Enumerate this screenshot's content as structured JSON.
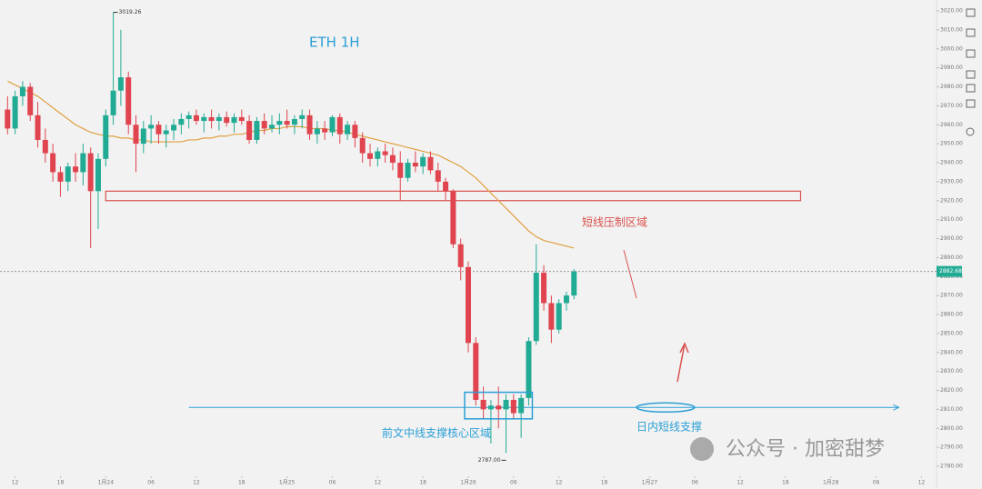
{
  "chart_data": {
    "type": "candlestick",
    "title": "ETH  1H",
    "x": [
      -13,
      -12,
      -11,
      -10,
      -9,
      -8,
      -7,
      -6,
      -5,
      -4,
      -3,
      -2,
      -1,
      0,
      1,
      2,
      3,
      4,
      5,
      6,
      7,
      8,
      9,
      10,
      11,
      12,
      13,
      14,
      15,
      16,
      17,
      18,
      19,
      20,
      21,
      22,
      23,
      24,
      25,
      26,
      27,
      28,
      29,
      30,
      31,
      32,
      33,
      34,
      35,
      36,
      37,
      38,
      39,
      40,
      41,
      42,
      43,
      44,
      45,
      46,
      47,
      48,
      49,
      50,
      51,
      52,
      53,
      54,
      55,
      56,
      57,
      58,
      59,
      60,
      61,
      62
    ],
    "open": [
      2968,
      2958,
      2975,
      2980,
      2965,
      2952,
      2945,
      2935,
      2930,
      2938,
      2935,
      2945,
      2925,
      2942,
      2965,
      2978,
      2985,
      2960,
      2950,
      2958,
      2960,
      2955,
      2957,
      2960,
      2963,
      2965,
      2962,
      2964,
      2962,
      2964,
      2961,
      2964,
      2962,
      2952,
      2962,
      2958,
      2960,
      2962,
      2960,
      2963,
      2965,
      2955,
      2958,
      2956,
      2964,
      2955,
      2960,
      2953,
      2945,
      2942,
      2946,
      2944,
      2940,
      2932,
      2940,
      2938,
      2943,
      2936,
      2930,
      2925,
      2897,
      2885,
      2845,
      2815,
      2810,
      2812,
      2810,
      2815,
      2808,
      2816,
      2846,
      2882,
      2866,
      2852,
      2866,
      2870
    ],
    "high": [
      2975,
      2978,
      2983,
      2982,
      2972,
      2958,
      2950,
      2938,
      2940,
      2945,
      2950,
      2948,
      2945,
      2968,
      3019.26,
      3010,
      2988,
      2965,
      2962,
      2965,
      2962,
      2960,
      2963,
      2966,
      2967,
      2968,
      2966,
      2968,
      2966,
      2967,
      2966,
      2968,
      2965,
      2964,
      2966,
      2965,
      2966,
      2968,
      2965,
      2968,
      2968,
      2962,
      2962,
      2965,
      2966,
      2962,
      2962,
      2956,
      2950,
      2948,
      2950,
      2948,
      2946,
      2942,
      2946,
      2945,
      2946,
      2940,
      2932,
      2926,
      2900,
      2888,
      2848,
      2822,
      2815,
      2822,
      2818,
      2818,
      2818,
      2848,
      2897,
      2886,
      2870,
      2868,
      2872,
      2884
    ],
    "low": [
      2955,
      2955,
      2970,
      2962,
      2948,
      2940,
      2930,
      2922,
      2925,
      2930,
      2928,
      2895,
      2905,
      2938,
      2960,
      2970,
      2955,
      2935,
      2945,
      2950,
      2950,
      2948,
      2952,
      2955,
      2958,
      2960,
      2956,
      2958,
      2957,
      2959,
      2956,
      2960,
      2950,
      2950,
      2955,
      2956,
      2955,
      2958,
      2955,
      2958,
      2952,
      2950,
      2952,
      2954,
      2950,
      2952,
      2948,
      2940,
      2938,
      2938,
      2940,
      2936,
      2920,
      2930,
      2935,
      2934,
      2934,
      2925,
      2920,
      2895,
      2878,
      2840,
      2812,
      2805,
      2792,
      2800,
      2787,
      2805,
      2795,
      2812,
      2844,
      2862,
      2845,
      2850,
      2862,
      2868
    ],
    "close": [
      2958,
      2975,
      2980,
      2965,
      2952,
      2945,
      2935,
      2930,
      2938,
      2935,
      2945,
      2925,
      2942,
      2965,
      2978,
      2985,
      2960,
      2950,
      2958,
      2960,
      2955,
      2957,
      2960,
      2963,
      2965,
      2962,
      2964,
      2962,
      2964,
      2961,
      2964,
      2962,
      2952,
      2962,
      2958,
      2960,
      2962,
      2960,
      2963,
      2965,
      2955,
      2958,
      2956,
      2964,
      2955,
      2960,
      2953,
      2945,
      2942,
      2946,
      2944,
      2940,
      2932,
      2940,
      2938,
      2943,
      2936,
      2930,
      2925,
      2897,
      2885,
      2845,
      2815,
      2810,
      2812,
      2810,
      2815,
      2808,
      2816,
      2846,
      2882,
      2866,
      2852,
      2866,
      2870,
      2882.68
    ],
    "ma": [
      2983,
      2981,
      2979,
      2977,
      2975,
      2972,
      2969,
      2966,
      2963,
      2960,
      2958,
      2956,
      2955,
      2954,
      2954,
      2953,
      2953,
      2952,
      2952,
      2951,
      2951,
      2951,
      2951,
      2951,
      2952,
      2952,
      2953,
      2953,
      2954,
      2954,
      2955,
      2955,
      2956,
      2957,
      2957,
      2958,
      2958,
      2959,
      2959,
      2959,
      2958,
      2958,
      2958,
      2957,
      2957,
      2956,
      2955,
      2954,
      2953,
      2952,
      2951,
      2950,
      2949,
      2948,
      2947,
      2946,
      2945,
      2944,
      2942,
      2940,
      2938,
      2935,
      2932,
      2928,
      2924,
      2920,
      2916,
      2912,
      2908,
      2904,
      2901,
      2899,
      2898,
      2897,
      2896,
      2895
    ],
    "up_color": "#22ab94",
    "down_color": "#e0444f",
    "ma_color": "#e0a040",
    "xlim": [
      -14,
      110
    ],
    "ylim": [
      2780,
      3020
    ],
    "xticks": [
      {
        "value": -12,
        "label": "12"
      },
      {
        "value": -6,
        "label": "18"
      },
      {
        "value": 0,
        "label": "1月24"
      },
      {
        "value": 6,
        "label": "06"
      },
      {
        "value": 12,
        "label": "12"
      },
      {
        "value": 18,
        "label": "18"
      },
      {
        "value": 24,
        "label": "1月25"
      },
      {
        "value": 30,
        "label": "06"
      },
      {
        "value": 36,
        "label": "12"
      },
      {
        "value": 42,
        "label": "18"
      },
      {
        "value": 48,
        "label": "1月26"
      },
      {
        "value": 54,
        "label": "06"
      },
      {
        "value": 60,
        "label": "12"
      },
      {
        "value": 66,
        "label": "18"
      },
      {
        "value": 72,
        "label": "1月27"
      },
      {
        "value": 78,
        "label": "06"
      },
      {
        "value": 84,
        "label": "12"
      },
      {
        "value": 90,
        "label": "18"
      },
      {
        "value": 96,
        "label": "1月28"
      },
      {
        "value": 102,
        "label": "06"
      },
      {
        "value": 108,
        "label": "12"
      }
    ],
    "yticks": [
      {
        "value": 2780,
        "label": "2780.00"
      },
      {
        "value": 2790,
        "label": "2790.00"
      },
      {
        "value": 2800,
        "label": "2800.00"
      },
      {
        "value": 2810,
        "label": "2810.00"
      },
      {
        "value": 2820,
        "label": "2820.00"
      },
      {
        "value": 2830,
        "label": "2830.00"
      },
      {
        "value": 2840,
        "label": "2840.00"
      },
      {
        "value": 2850,
        "label": "2850.00"
      },
      {
        "value": 2860,
        "label": "2860.00"
      },
      {
        "value": 2870,
        "label": "2870.00"
      },
      {
        "value": 2880,
        "label": "2880.00"
      },
      {
        "value": 2890,
        "label": "2890.00"
      },
      {
        "value": 2900,
        "label": "2900.00"
      },
      {
        "value": 2910,
        "label": "2910.00"
      },
      {
        "value": 2920,
        "label": "2920.00"
      },
      {
        "value": 2930,
        "label": "2930.00"
      },
      {
        "value": 2940,
        "label": "2940.00"
      },
      {
        "value": 2950,
        "label": "2950.00"
      },
      {
        "value": 2960,
        "label": "2960.00"
      },
      {
        "value": 2970,
        "label": "2970.00"
      },
      {
        "value": 2980,
        "label": "2980.00"
      },
      {
        "value": 2990,
        "label": "2990.00"
      },
      {
        "value": 3000,
        "label": "3000.00"
      },
      {
        "value": 3010,
        "label": "3010.00"
      },
      {
        "value": 3020,
        "label": "3020.00"
      }
    ],
    "high_marker": {
      "x": 1,
      "value": 3019.26,
      "label": "3019.26"
    },
    "low_marker": {
      "x": 53,
      "value": 2787,
      "label": "2787.00"
    },
    "last_price": 2882.68,
    "resistance_zone": {
      "from": 0,
      "to": 92,
      "low": 2920,
      "high": 2925,
      "label": "短线压制区域"
    },
    "support_box": {
      "from": 48,
      "to": 56,
      "low": 2805,
      "high": 2819,
      "label": "前文中线支撑核心区域"
    },
    "support_line": {
      "from": 11,
      "to": 105,
      "value": 2811,
      "label": "日内短线支撑"
    },
    "watermark": "公众号 · 加密甜梦"
  }
}
